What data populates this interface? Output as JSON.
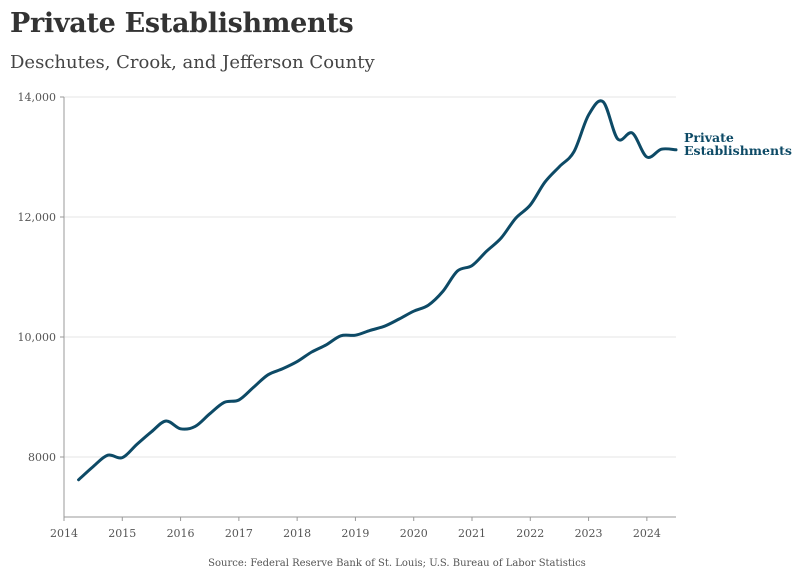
{
  "header": {
    "title": "Private Establishments",
    "subtitle": "Deschutes, Crook, and Jefferson County"
  },
  "footer": {
    "source": "Source: Federal Reserve Bank of St. Louis; U.S. Bureau of Labor Statistics"
  },
  "chart_data": {
    "type": "line",
    "title": "Private Establishments",
    "subtitle": "Deschutes, Crook, and Jefferson County",
    "xlabel": "",
    "ylabel": "",
    "xlim": [
      2014,
      2024.5
    ],
    "ylim": [
      7000,
      14000
    ],
    "x_ticks": [
      2014,
      2015,
      2016,
      2017,
      2018,
      2019,
      2020,
      2021,
      2022,
      2023,
      2024
    ],
    "x_tick_labels": [
      "2014",
      "2015",
      "2016",
      "2017",
      "2018",
      "2019",
      "2020",
      "2021",
      "2022",
      "2023",
      "2024"
    ],
    "y_ticks": [
      8000,
      10000,
      12000,
      14000
    ],
    "y_tick_labels": [
      "8000",
      "10,000",
      "12,000",
      "14,000"
    ],
    "grid": true,
    "series": [
      {
        "name": "Private Establishments",
        "label_lines": [
          "Private",
          "Establishments"
        ],
        "color": "#0d4a66",
        "x": [
          2014.25,
          2014.5,
          2014.75,
          2015.0,
          2015.25,
          2015.5,
          2015.75,
          2016.0,
          2016.25,
          2016.5,
          2016.75,
          2017.0,
          2017.25,
          2017.5,
          2017.75,
          2018.0,
          2018.25,
          2018.5,
          2018.75,
          2019.0,
          2019.25,
          2019.5,
          2019.75,
          2020.0,
          2020.25,
          2020.5,
          2020.75,
          2021.0,
          2021.25,
          2021.5,
          2021.75,
          2022.0,
          2022.25,
          2022.5,
          2022.75,
          2023.0,
          2023.25,
          2023.5,
          2023.75,
          2024.0,
          2024.25,
          2024.5
        ],
        "values": [
          7620,
          7840,
          8030,
          7990,
          8210,
          8420,
          8600,
          8470,
          8510,
          8720,
          8910,
          8950,
          9160,
          9370,
          9470,
          9590,
          9750,
          9870,
          10020,
          10030,
          10110,
          10180,
          10300,
          10430,
          10530,
          10760,
          11100,
          11190,
          11430,
          11650,
          11980,
          12200,
          12580,
          12840,
          13090,
          13700,
          13920,
          13300,
          13400,
          13000,
          13130,
          13120
        ]
      }
    ]
  }
}
